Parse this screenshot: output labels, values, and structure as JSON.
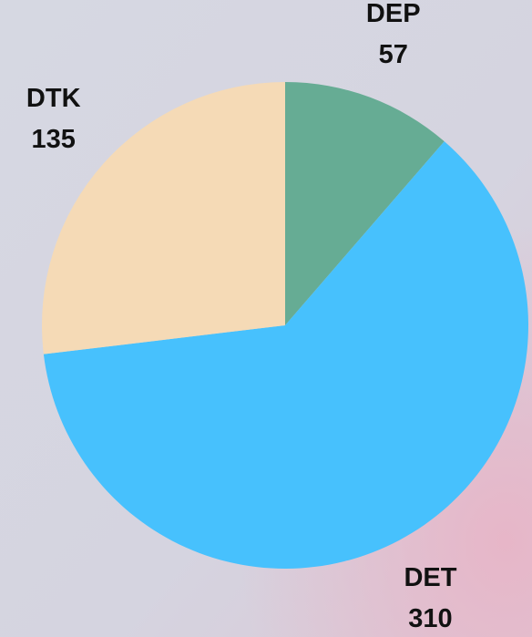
{
  "chart_data": {
    "type": "pie",
    "categories": [
      "DEP",
      "DET",
      "DTK"
    ],
    "values": [
      57,
      310,
      135
    ],
    "colors": [
      "#66ac94",
      "#47c1fd",
      "#f5dab6"
    ]
  }
}
